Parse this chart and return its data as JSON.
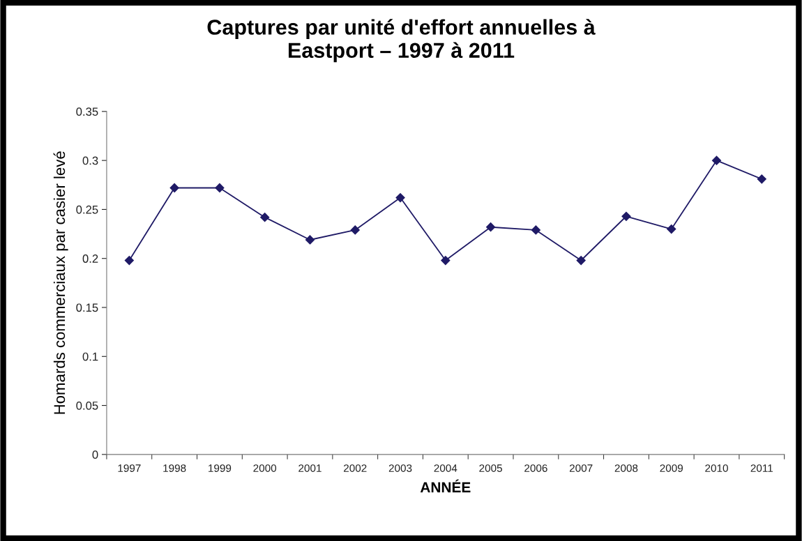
{
  "chart_data": {
    "type": "line",
    "title": "Captures par unité d'effort annuelles à\nEastport – 1997 à 2011",
    "xlabel": "ANNÉE",
    "ylabel": "Homards commerciaux par casier levé",
    "categories": [
      "1997",
      "1998",
      "1999",
      "2000",
      "2001",
      "2002",
      "2003",
      "2004",
      "2005",
      "2006",
      "2007",
      "2008",
      "2009",
      "2010",
      "2011"
    ],
    "series": [
      {
        "color": "#1f1a66",
        "values": [
          0.198,
          0.272,
          0.272,
          0.242,
          0.219,
          0.229,
          0.262,
          0.198,
          0.232,
          0.229,
          0.198,
          0.243,
          0.23,
          0.3,
          0.281
        ]
      }
    ],
    "ylim": [
      0,
      0.35
    ],
    "yticks": [
      0,
      0.05,
      0.1,
      0.15,
      0.2,
      0.25,
      0.3,
      0.35
    ],
    "grid": false,
    "marker": "diamond",
    "line_style": "solid"
  }
}
